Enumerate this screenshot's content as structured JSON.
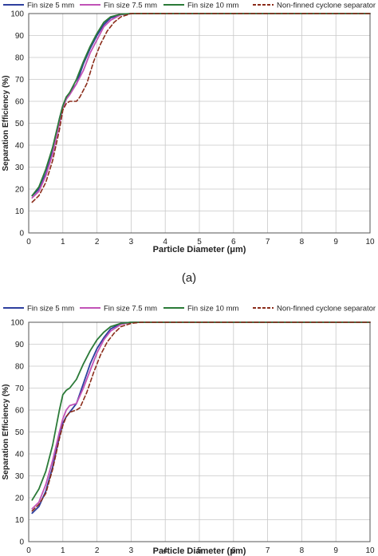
{
  "chart_data": [
    {
      "type": "line",
      "panel_label": "(a)",
      "xlabel": "Particle Diameter (μm)",
      "ylabel": "Separation Efficiency (%)",
      "xlim": [
        0,
        10
      ],
      "ylim": [
        0,
        100
      ],
      "x_ticks": [
        "0",
        "1",
        "2",
        "3",
        "4",
        "5",
        "6",
        "7",
        "8",
        "9",
        "10"
      ],
      "y_ticks": [
        "0",
        "10",
        "20",
        "30",
        "40",
        "50",
        "60",
        "70",
        "80",
        "90",
        "100"
      ],
      "grid": true,
      "legend": "top",
      "series": [
        {
          "name": "Fin size 5 mm",
          "color": "#2e3f9e",
          "dashed": false,
          "points": [
            [
              0.1,
              17
            ],
            [
              0.3,
              20
            ],
            [
              0.5,
              27
            ],
            [
              0.7,
              37
            ],
            [
              0.9,
              52
            ],
            [
              1.0,
              58
            ],
            [
              1.1,
              61
            ],
            [
              1.2,
              64
            ],
            [
              1.4,
              68
            ],
            [
              1.6,
              77
            ],
            [
              1.8,
              84
            ],
            [
              2.0,
              90
            ],
            [
              2.2,
              95
            ],
            [
              2.4,
              98
            ],
            [
              2.7,
              99.5
            ],
            [
              3.0,
              100
            ],
            [
              10,
              100
            ]
          ]
        },
        {
          "name": "Fin size 7.5 mm",
          "color": "#c153b7",
          "dashed": false,
          "points": [
            [
              0.1,
              16
            ],
            [
              0.3,
              19
            ],
            [
              0.5,
              26
            ],
            [
              0.7,
              36
            ],
            [
              0.9,
              50
            ],
            [
              1.0,
              57
            ],
            [
              1.1,
              61
            ],
            [
              1.2,
              63
            ],
            [
              1.4,
              68
            ],
            [
              1.6,
              74
            ],
            [
              1.8,
              82
            ],
            [
              2.0,
              88
            ],
            [
              2.2,
              94
            ],
            [
              2.4,
              97
            ],
            [
              2.7,
              99.5
            ],
            [
              3.0,
              100
            ],
            [
              10,
              100
            ]
          ]
        },
        {
          "name": "Fin size 10 mm",
          "color": "#2b7a38",
          "dashed": false,
          "points": [
            [
              0.1,
              17
            ],
            [
              0.3,
              21
            ],
            [
              0.5,
              29
            ],
            [
              0.7,
              39
            ],
            [
              0.9,
              52
            ],
            [
              1.0,
              58
            ],
            [
              1.1,
              62
            ],
            [
              1.2,
              64
            ],
            [
              1.4,
              70
            ],
            [
              1.6,
              78
            ],
            [
              1.8,
              85
            ],
            [
              2.0,
              91
            ],
            [
              2.2,
              96
            ],
            [
              2.4,
              98.5
            ],
            [
              2.7,
              99.7
            ],
            [
              3.0,
              100
            ],
            [
              10,
              100
            ]
          ]
        },
        {
          "name": "Non-finned cyclone separator",
          "color": "#8b2c1a",
          "dashed": true,
          "points": [
            [
              0.1,
              14
            ],
            [
              0.3,
              17
            ],
            [
              0.5,
              23
            ],
            [
              0.7,
              33
            ],
            [
              0.9,
              47
            ],
            [
              1.0,
              56
            ],
            [
              1.1,
              59
            ],
            [
              1.2,
              60
            ],
            [
              1.4,
              60
            ],
            [
              1.5,
              62
            ],
            [
              1.7,
              68
            ],
            [
              1.9,
              78
            ],
            [
              2.1,
              86
            ],
            [
              2.3,
              92
            ],
            [
              2.5,
              96
            ],
            [
              2.7,
              98.5
            ],
            [
              3.0,
              100
            ],
            [
              10,
              100
            ]
          ]
        }
      ]
    },
    {
      "type": "line",
      "panel_label": "",
      "xlabel": "Particle Diameter (μm)",
      "ylabel": "Separation Efficiency (%)",
      "xlim": [
        0,
        10
      ],
      "ylim": [
        0,
        100
      ],
      "x_ticks": [
        "0",
        "1",
        "2",
        "3",
        "4",
        "5",
        "6",
        "7",
        "8",
        "9",
        "10"
      ],
      "y_ticks": [
        "0",
        "10",
        "20",
        "30",
        "40",
        "50",
        "60",
        "70",
        "80",
        "90",
        "100"
      ],
      "grid": true,
      "legend": "top",
      "series": [
        {
          "name": "Fin size 5 mm",
          "color": "#2e3f9e",
          "dashed": false,
          "points": [
            [
              0.1,
              13
            ],
            [
              0.3,
              16
            ],
            [
              0.5,
              23
            ],
            [
              0.7,
              34
            ],
            [
              0.9,
              48
            ],
            [
              1.0,
              54
            ],
            [
              1.1,
              57
            ],
            [
              1.2,
              59
            ],
            [
              1.4,
              63
            ],
            [
              1.6,
              72
            ],
            [
              1.8,
              81
            ],
            [
              2.0,
              88
            ],
            [
              2.2,
              93
            ],
            [
              2.4,
              97
            ],
            [
              2.7,
              99.5
            ],
            [
              3.0,
              100
            ],
            [
              10,
              100
            ]
          ]
        },
        {
          "name": "Fin size 7.5 mm",
          "color": "#c153b7",
          "dashed": false,
          "points": [
            [
              0.1,
              15
            ],
            [
              0.3,
              18
            ],
            [
              0.5,
              26
            ],
            [
              0.7,
              37
            ],
            [
              0.9,
              50
            ],
            [
              1.0,
              56
            ],
            [
              1.1,
              60
            ],
            [
              1.2,
              62
            ],
            [
              1.4,
              63
            ],
            [
              1.6,
              70
            ],
            [
              1.8,
              78
            ],
            [
              2.0,
              86
            ],
            [
              2.2,
              92
            ],
            [
              2.4,
              96
            ],
            [
              2.7,
              99
            ],
            [
              3.0,
              100
            ],
            [
              10,
              100
            ]
          ]
        },
        {
          "name": "Fin size 10 mm",
          "color": "#2b7a38",
          "dashed": false,
          "points": [
            [
              0.1,
              19
            ],
            [
              0.3,
              24
            ],
            [
              0.5,
              32
            ],
            [
              0.7,
              44
            ],
            [
              0.9,
              60
            ],
            [
              1.0,
              67
            ],
            [
              1.1,
              69
            ],
            [
              1.2,
              70
            ],
            [
              1.4,
              74
            ],
            [
              1.6,
              81
            ],
            [
              1.8,
              87
            ],
            [
              2.0,
              92
            ],
            [
              2.2,
              95.5
            ],
            [
              2.4,
              98
            ],
            [
              2.7,
              99.5
            ],
            [
              3.0,
              100
            ],
            [
              10,
              100
            ]
          ]
        },
        {
          "name": "Non-finned cyclone separator",
          "color": "#8b2c1a",
          "dashed": true,
          "points": [
            [
              0.1,
              14
            ],
            [
              0.3,
              17
            ],
            [
              0.5,
              22
            ],
            [
              0.7,
              33
            ],
            [
              0.9,
              47
            ],
            [
              1.0,
              53
            ],
            [
              1.1,
              57
            ],
            [
              1.2,
              59
            ],
            [
              1.4,
              60
            ],
            [
              1.5,
              61
            ],
            [
              1.7,
              68
            ],
            [
              1.9,
              77
            ],
            [
              2.1,
              85
            ],
            [
              2.3,
              91
            ],
            [
              2.5,
              95
            ],
            [
              2.7,
              98
            ],
            [
              3.0,
              99.5
            ],
            [
              3.3,
              100
            ],
            [
              10,
              100
            ]
          ]
        }
      ]
    }
  ]
}
